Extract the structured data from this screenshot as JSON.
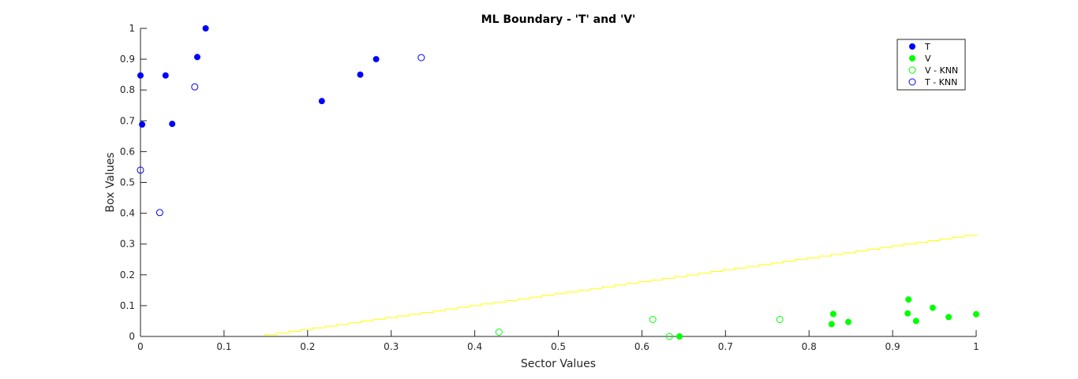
{
  "chart_data": {
    "type": "scatter",
    "title": "ML Boundary - 'T' and 'V'",
    "xlabel": "Sector Values",
    "ylabel": "Box Values",
    "xlim": [
      0,
      1
    ],
    "ylim": [
      0,
      1
    ],
    "xticks": [
      "0",
      "0.1",
      "0.2",
      "0.3",
      "0.4",
      "0.5",
      "0.6",
      "0.7",
      "0.8",
      "0.9",
      "1"
    ],
    "yticks": [
      "0",
      "0.1",
      "0.2",
      "0.3",
      "0.4",
      "0.5",
      "0.6",
      "0.7",
      "0.8",
      "0.9",
      "1"
    ],
    "grid": false,
    "legend_position": "top-right",
    "series": [
      {
        "name": "T",
        "color": "#0000ff",
        "marker": "filled-circle",
        "points": [
          [
            0.0,
            0.847
          ],
          [
            0.002,
            0.688
          ],
          [
            0.03,
            0.847
          ],
          [
            0.038,
            0.69
          ],
          [
            0.068,
            0.907
          ],
          [
            0.078,
            1.0
          ],
          [
            0.217,
            0.764
          ],
          [
            0.263,
            0.85
          ],
          [
            0.282,
            0.9
          ]
        ]
      },
      {
        "name": "V",
        "color": "#00ff00",
        "marker": "filled-circle",
        "points": [
          [
            0.645,
            0.0
          ],
          [
            0.827,
            0.04
          ],
          [
            0.829,
            0.073
          ],
          [
            0.847,
            0.047
          ],
          [
            0.918,
            0.075
          ],
          [
            0.919,
            0.12
          ],
          [
            0.928,
            0.05
          ],
          [
            0.948,
            0.093
          ],
          [
            0.967,
            0.063
          ],
          [
            1.0,
            0.072
          ]
        ]
      },
      {
        "name": "V - KNN",
        "color": "#00ff00",
        "marker": "open-circle",
        "points": [
          [
            0.429,
            0.014
          ],
          [
            0.613,
            0.055
          ],
          [
            0.633,
            0.0
          ],
          [
            0.765,
            0.055
          ]
        ]
      },
      {
        "name": "T - KNN",
        "color": "#0000ff",
        "marker": "open-circle",
        "points": [
          [
            0.0,
            0.54
          ],
          [
            0.023,
            0.402
          ],
          [
            0.065,
            0.81
          ],
          [
            0.336,
            0.905
          ]
        ]
      }
    ],
    "boundary": {
      "color": "#ffff00",
      "x": [
        0.134,
        1.0
      ],
      "y": [
        0.0,
        0.333
      ]
    }
  }
}
